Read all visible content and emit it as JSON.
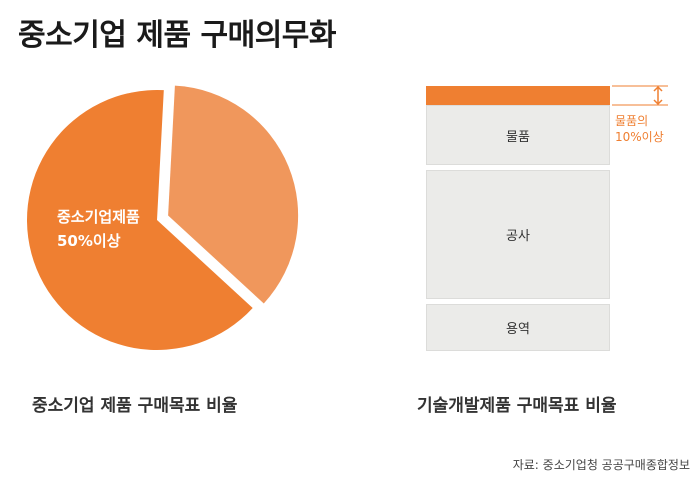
{
  "title": "중소기업 제품 구매의무화",
  "chart_data": [
    {
      "type": "pie",
      "caption": "중소기업 제품 구매목표 비율",
      "slices": [
        {
          "label": "중소기업제품 50%이상",
          "value": 64,
          "color": "#ef7f31"
        },
        {
          "label": "",
          "value": 36,
          "color": "#f0975c"
        }
      ],
      "inner_label_line1": "중소기업제품",
      "inner_label_line2": "50%이상"
    },
    {
      "type": "bar",
      "orientation": "stacked-vertical",
      "caption": "기술개발제품 구매목표 비율",
      "segments": [
        {
          "label": "물품",
          "value": 10,
          "highlighted_share": "10%이상",
          "color": "#ef7f31"
        },
        {
          "label": "물품",
          "value": 32
        },
        {
          "label": "공사",
          "value": 66
        },
        {
          "label": "용역",
          "value": 24
        }
      ],
      "annotation_line1": "물품의",
      "annotation_line2": "10%이상"
    }
  ],
  "source": "자료: 중소기업청 공공구매종합정보"
}
